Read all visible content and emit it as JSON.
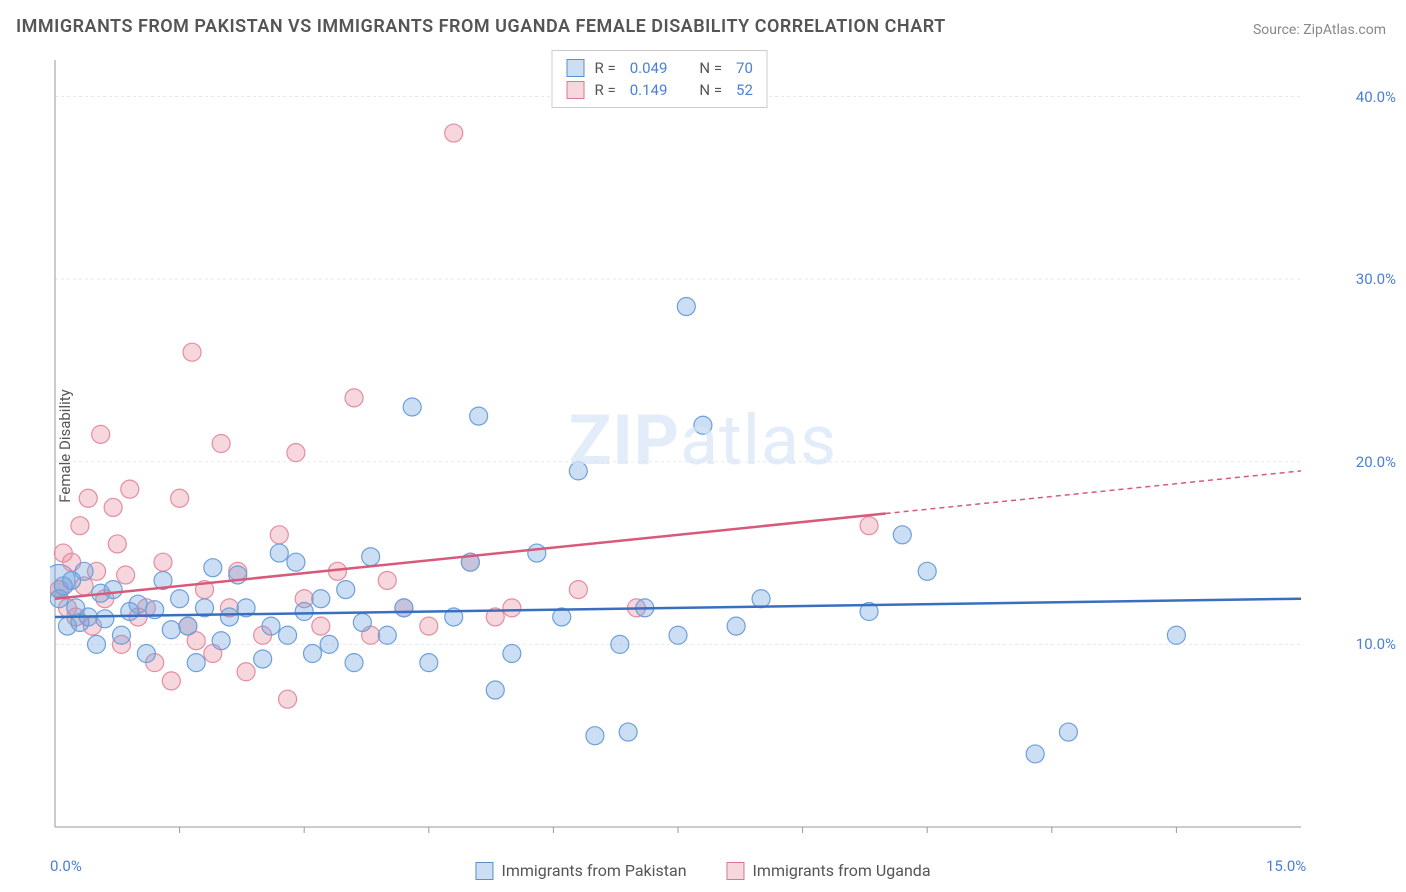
{
  "title": "IMMIGRANTS FROM PAKISTAN VS IMMIGRANTS FROM UGANDA FEMALE DISABILITY CORRELATION CHART",
  "source": "Source: ZipAtlas.com",
  "ylabel": "Female Disability",
  "watermark": "ZIPatlas",
  "x_axis": {
    "min": 0,
    "max": 15,
    "ticks": [
      0,
      15
    ],
    "labels": [
      "0.0%",
      "15.0%"
    ]
  },
  "y_axis": {
    "min": 0,
    "max": 42,
    "grid": [
      10,
      20,
      30,
      40
    ],
    "labels": [
      "10.0%",
      "20.0%",
      "30.0%",
      "40.0%"
    ]
  },
  "minor_x_ticks": [
    1.5,
    3,
    4.5,
    6,
    7.5,
    9,
    10.5,
    12,
    13.5
  ],
  "series": [
    {
      "name": "Immigrants from Pakistan",
      "color_fill": "rgba(108,160,220,0.35)",
      "color_stroke": "#6ca0dc",
      "swatch_border": "#5a8fc8",
      "R": "0.049",
      "N": "70",
      "trend": {
        "y_start": 11.5,
        "y_end": 12.5,
        "solid_end_x": 15,
        "line_color": "#3a6fc0"
      },
      "points": [
        [
          0.05,
          12.5
        ],
        [
          0.1,
          13.2
        ],
        [
          0.15,
          11.0
        ],
        [
          0.2,
          13.5
        ],
        [
          0.25,
          12.0
        ],
        [
          0.3,
          11.2
        ],
        [
          0.35,
          14.0
        ],
        [
          0.4,
          11.5
        ],
        [
          0.5,
          10.0
        ],
        [
          0.55,
          12.8
        ],
        [
          0.6,
          11.4
        ],
        [
          0.7,
          13.0
        ],
        [
          0.8,
          10.5
        ],
        [
          0.9,
          11.8
        ],
        [
          1.0,
          12.2
        ],
        [
          1.1,
          9.5
        ],
        [
          1.2,
          11.9
        ],
        [
          1.3,
          13.5
        ],
        [
          1.4,
          10.8
        ],
        [
          1.5,
          12.5
        ],
        [
          1.6,
          11.0
        ],
        [
          1.7,
          9.0
        ],
        [
          1.8,
          12.0
        ],
        [
          1.9,
          14.2
        ],
        [
          2.0,
          10.2
        ],
        [
          2.1,
          11.5
        ],
        [
          2.2,
          13.8
        ],
        [
          2.3,
          12.0
        ],
        [
          2.5,
          9.2
        ],
        [
          2.6,
          11.0
        ],
        [
          2.7,
          15.0
        ],
        [
          2.8,
          10.5
        ],
        [
          2.9,
          14.5
        ],
        [
          3.0,
          11.8
        ],
        [
          3.1,
          9.5
        ],
        [
          3.2,
          12.5
        ],
        [
          3.3,
          10.0
        ],
        [
          3.5,
          13.0
        ],
        [
          3.6,
          9.0
        ],
        [
          3.7,
          11.2
        ],
        [
          3.8,
          14.8
        ],
        [
          4.0,
          10.5
        ],
        [
          4.2,
          12.0
        ],
        [
          4.3,
          23.0
        ],
        [
          4.5,
          9.0
        ],
        [
          4.8,
          11.5
        ],
        [
          5.0,
          14.5
        ],
        [
          5.1,
          22.5
        ],
        [
          5.3,
          7.5
        ],
        [
          5.5,
          9.5
        ],
        [
          5.8,
          15.0
        ],
        [
          6.1,
          11.5
        ],
        [
          6.3,
          19.5
        ],
        [
          6.5,
          5.0
        ],
        [
          6.8,
          10.0
        ],
        [
          6.9,
          5.2
        ],
        [
          7.1,
          12.0
        ],
        [
          7.5,
          10.5
        ],
        [
          7.6,
          28.5
        ],
        [
          7.8,
          22.0
        ],
        [
          8.2,
          11.0
        ],
        [
          8.5,
          12.5
        ],
        [
          9.8,
          11.8
        ],
        [
          10.2,
          16.0
        ],
        [
          10.5,
          14.0
        ],
        [
          11.8,
          4.0
        ],
        [
          12.2,
          5.2
        ],
        [
          13.5,
          10.5
        ]
      ]
    },
    {
      "name": "Immigrants from Uganda",
      "color_fill": "rgba(230,140,160,0.35)",
      "color_stroke": "#e68ca0",
      "swatch_border": "#d87a8f",
      "R": "0.149",
      "N": "52",
      "trend": {
        "y_start": 12.5,
        "y_end": 19.5,
        "solid_end_x": 10,
        "line_color": "#d85a7a"
      },
      "points": [
        [
          0.05,
          13.0
        ],
        [
          0.1,
          15.0
        ],
        [
          0.15,
          12.0
        ],
        [
          0.2,
          14.5
        ],
        [
          0.25,
          11.5
        ],
        [
          0.3,
          16.5
        ],
        [
          0.35,
          13.2
        ],
        [
          0.4,
          18.0
        ],
        [
          0.45,
          11.0
        ],
        [
          0.5,
          14.0
        ],
        [
          0.55,
          21.5
        ],
        [
          0.6,
          12.5
        ],
        [
          0.7,
          17.5
        ],
        [
          0.75,
          15.5
        ],
        [
          0.8,
          10.0
        ],
        [
          0.85,
          13.8
        ],
        [
          0.9,
          18.5
        ],
        [
          1.0,
          11.5
        ],
        [
          1.1,
          12.0
        ],
        [
          1.2,
          9.0
        ],
        [
          1.3,
          14.5
        ],
        [
          1.4,
          8.0
        ],
        [
          1.5,
          18.0
        ],
        [
          1.6,
          11.0
        ],
        [
          1.65,
          26.0
        ],
        [
          1.7,
          10.2
        ],
        [
          1.8,
          13.0
        ],
        [
          1.9,
          9.5
        ],
        [
          2.0,
          21.0
        ],
        [
          2.1,
          12.0
        ],
        [
          2.2,
          14.0
        ],
        [
          2.3,
          8.5
        ],
        [
          2.5,
          10.5
        ],
        [
          2.7,
          16.0
        ],
        [
          2.8,
          7.0
        ],
        [
          2.9,
          20.5
        ],
        [
          3.0,
          12.5
        ],
        [
          3.2,
          11.0
        ],
        [
          3.4,
          14.0
        ],
        [
          3.6,
          23.5
        ],
        [
          3.8,
          10.5
        ],
        [
          4.0,
          13.5
        ],
        [
          4.2,
          12.0
        ],
        [
          4.5,
          11.0
        ],
        [
          4.8,
          38.0
        ],
        [
          5.0,
          14.5
        ],
        [
          5.3,
          11.5
        ],
        [
          5.5,
          12.0
        ],
        [
          6.3,
          13.0
        ],
        [
          7.0,
          12.0
        ],
        [
          9.8,
          16.5
        ]
      ]
    }
  ],
  "legend_top": [
    {
      "series_index": 0,
      "text_r": "R =",
      "text_n": "N ="
    },
    {
      "series_index": 1,
      "text_r": "R =",
      "text_n": "N ="
    }
  ],
  "chart_style": {
    "plot_bg": "#ffffff",
    "grid_color": "#e8e8e8",
    "axis_color": "#999",
    "marker_radius": 9,
    "big_marker_radius": 16
  }
}
